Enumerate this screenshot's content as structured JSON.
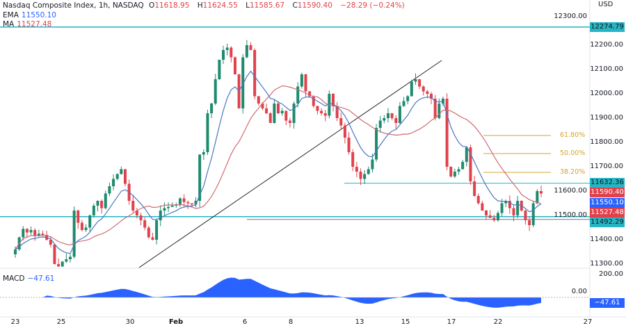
{
  "header": {
    "symbol": "Nasdaq Composite Index, 1h, NASDAQ",
    "open_label": "O",
    "open": "11618.95",
    "high_label": "H",
    "high": "11624.55",
    "low_label": "L",
    "low": "11585.67",
    "close_label": "C",
    "close": "11590.40",
    "change": "−28.29 (−0.24%)"
  },
  "indicators": {
    "ema_label": "EMA",
    "ema_value": "11550.10",
    "ma_label": "MA",
    "ma_value": "11527.48",
    "macd_label": "MACD",
    "macd_value": "−47.61"
  },
  "price_axis": {
    "currency": "USD",
    "ticks": [
      "12300.00",
      "12200.00",
      "12100.00",
      "12000.00",
      "11900.00",
      "11800.00",
      "11700.00",
      "11600.00",
      "11500.00",
      "11400.00",
      "11300.00"
    ]
  },
  "macd_axis": {
    "ticks": [
      "200.00",
      "0.00"
    ],
    "value_tag": "−47.61"
  },
  "price_tags": [
    {
      "value": "12274.79",
      "color": "#26b5c3"
    },
    {
      "value": "11632.36",
      "color": "#26b5c3"
    },
    {
      "value": "11590.40",
      "color": "#e0424d"
    },
    {
      "value": "11550.10",
      "color": "#2962ff"
    },
    {
      "value": "11527.48",
      "color": "#e0424d"
    },
    {
      "value": "11492.29",
      "color": "#26b5c3"
    }
  ],
  "fib_levels": [
    {
      "label": "61.80%"
    },
    {
      "label": "50.00%"
    },
    {
      "label": "38.20%"
    }
  ],
  "time_axis": [
    "23",
    "25",
    "30",
    "Feb",
    "6",
    "8",
    "13",
    "15",
    "17",
    "22",
    "27"
  ],
  "colors": {
    "up": "#1e8a6e",
    "down": "#e0424d",
    "ema": "#4a76c0",
    "ma": "#cf6b73",
    "level": "#26b5c3",
    "fib": "#d4a42a",
    "macd": "#2962ff"
  },
  "chart_data": {
    "type": "candlestick",
    "closes": [
      11360,
      11410,
      11445,
      11430,
      11440,
      11415,
      11425,
      11420,
      11400,
      11380,
      11300,
      11290,
      11310,
      11320,
      11330,
      11520,
      11470,
      11440,
      11450,
      11500,
      11540,
      11560,
      11530,
      11590,
      11620,
      11650,
      11670,
      11690,
      11630,
      11560,
      11520,
      11500,
      11480,
      11450,
      11410,
      11400,
      11480,
      11520,
      11530,
      11535,
      11540,
      11545,
      11570,
      11555,
      11550,
      11545,
      11560,
      11750,
      11760,
      11920,
      11960,
      12060,
      12140,
      12180,
      12190,
      12150,
      12080,
      11940,
      12150,
      12200,
      12180,
      11990,
      11960,
      11940,
      11920,
      11880,
      11960,
      11920,
      11930,
      11890,
      11880,
      11960,
      12030,
      12080,
      12010,
      11990,
      11950,
      11930,
      11920,
      11910,
      12000,
      11950,
      11900,
      11870,
      11820,
      11760,
      11700,
      11680,
      11650,
      11670,
      11690,
      11730,
      11860,
      11890,
      11900,
      11920,
      11900,
      11880,
      11950,
      11970,
      11990,
      12050,
      12060,
      12030,
      12010,
      12000,
      11980,
      11900,
      11960,
      11980,
      11700,
      11660,
      11680,
      11690,
      11720,
      11780,
      11640,
      11580,
      11550,
      11520,
      11500,
      11490,
      11480,
      11510,
      11550,
      11560,
      11530,
      11500,
      11560,
      11520,
      11480,
      11460,
      11550,
      11600,
      11590
    ],
    "last_close": 11590.4,
    "levels": [
      12274.79,
      11632.36,
      11492.29
    ],
    "ylim": [
      11280,
      12310
    ]
  }
}
